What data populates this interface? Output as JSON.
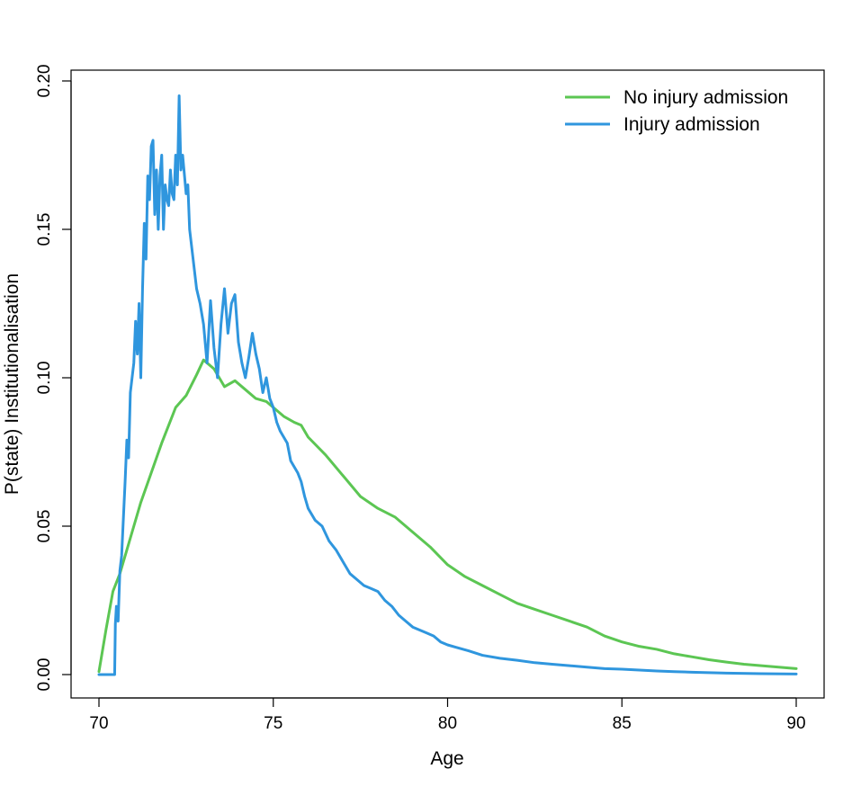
{
  "chart_data": {
    "type": "line",
    "title": "",
    "xlabel": "Age",
    "ylabel": "P(state) Institutionalisation",
    "xlim": [
      70,
      90
    ],
    "ylim": [
      0,
      0.2
    ],
    "xticks": [
      70,
      75,
      80,
      85,
      90
    ],
    "xtick_labels": [
      "70",
      "75",
      "80",
      "85",
      "90"
    ],
    "yticks": [
      0,
      0.05,
      0.1,
      0.15,
      0.2
    ],
    "ytick_labels": [
      "0.00",
      "0.05",
      "0.10",
      "0.15",
      "0.20"
    ],
    "grid": false,
    "legend": {
      "position": "top-right",
      "frame": false
    },
    "series": [
      {
        "name": "No injury admission",
        "color": "#5CC653",
        "x": [
          70.0,
          70.2,
          70.4,
          70.6,
          70.8,
          71.0,
          71.2,
          71.5,
          71.8,
          72.0,
          72.2,
          72.5,
          72.8,
          73.0,
          73.3,
          73.6,
          73.9,
          74.2,
          74.5,
          74.8,
          75.0,
          75.3,
          75.6,
          75.8,
          76.0,
          76.5,
          77.0,
          77.5,
          78.0,
          78.5,
          79.0,
          79.5,
          80.0,
          80.5,
          81.0,
          81.5,
          82.0,
          82.5,
          83.0,
          83.5,
          84.0,
          84.5,
          85.0,
          85.5,
          86.0,
          86.5,
          87.0,
          87.5,
          88.0,
          88.5,
          89.0,
          89.5,
          90.0
        ],
        "values": [
          0.001,
          0.015,
          0.028,
          0.034,
          0.042,
          0.05,
          0.058,
          0.068,
          0.078,
          0.084,
          0.09,
          0.094,
          0.101,
          0.106,
          0.103,
          0.097,
          0.099,
          0.096,
          0.093,
          0.092,
          0.09,
          0.087,
          0.085,
          0.084,
          0.08,
          0.074,
          0.067,
          0.06,
          0.056,
          0.053,
          0.048,
          0.043,
          0.037,
          0.033,
          0.03,
          0.027,
          0.024,
          0.022,
          0.02,
          0.018,
          0.016,
          0.013,
          0.011,
          0.0095,
          0.0085,
          0.007,
          0.006,
          0.005,
          0.0042,
          0.0035,
          0.003,
          0.0025,
          0.002
        ]
      },
      {
        "name": "Injury admission",
        "color": "#2F96DE",
        "x": [
          70.0,
          70.45,
          70.47,
          70.5,
          70.55,
          70.6,
          70.65,
          70.75,
          70.8,
          70.85,
          70.9,
          71.0,
          71.05,
          71.1,
          71.15,
          71.2,
          71.25,
          71.3,
          71.35,
          71.4,
          71.45,
          71.5,
          71.55,
          71.6,
          71.65,
          71.7,
          71.75,
          71.8,
          71.85,
          71.9,
          71.95,
          72.0,
          72.05,
          72.1,
          72.15,
          72.2,
          72.25,
          72.3,
          72.35,
          72.4,
          72.5,
          72.55,
          72.6,
          72.7,
          72.8,
          72.9,
          73.0,
          73.1,
          73.2,
          73.3,
          73.4,
          73.5,
          73.6,
          73.7,
          73.8,
          73.9,
          74.0,
          74.1,
          74.2,
          74.3,
          74.4,
          74.5,
          74.6,
          74.7,
          74.8,
          74.9,
          75.0,
          75.1,
          75.2,
          75.3,
          75.4,
          75.5,
          75.6,
          75.7,
          75.8,
          75.9,
          76.0,
          76.2,
          76.4,
          76.6,
          76.8,
          77.0,
          77.2,
          77.4,
          77.6,
          77.8,
          78.0,
          78.2,
          78.4,
          78.6,
          78.8,
          79.0,
          79.2,
          79.4,
          79.6,
          79.8,
          80.0,
          80.3,
          80.6,
          81.0,
          81.5,
          82.0,
          82.5,
          83.0,
          83.5,
          84.0,
          84.5,
          85.0,
          85.5,
          86.0,
          86.5,
          87.0,
          88.0,
          89.0,
          90.0
        ],
        "values": [
          0.0,
          0.0,
          0.017,
          0.023,
          0.018,
          0.035,
          0.04,
          0.065,
          0.079,
          0.073,
          0.095,
          0.105,
          0.119,
          0.108,
          0.125,
          0.1,
          0.13,
          0.152,
          0.14,
          0.168,
          0.16,
          0.178,
          0.18,
          0.155,
          0.17,
          0.15,
          0.168,
          0.175,
          0.15,
          0.165,
          0.16,
          0.158,
          0.17,
          0.162,
          0.16,
          0.175,
          0.165,
          0.195,
          0.17,
          0.175,
          0.162,
          0.165,
          0.15,
          0.14,
          0.13,
          0.125,
          0.118,
          0.105,
          0.126,
          0.11,
          0.1,
          0.118,
          0.13,
          0.115,
          0.125,
          0.128,
          0.112,
          0.105,
          0.1,
          0.107,
          0.115,
          0.108,
          0.103,
          0.095,
          0.1,
          0.093,
          0.09,
          0.085,
          0.082,
          0.08,
          0.078,
          0.072,
          0.07,
          0.068,
          0.065,
          0.06,
          0.056,
          0.052,
          0.05,
          0.045,
          0.042,
          0.038,
          0.034,
          0.032,
          0.03,
          0.029,
          0.028,
          0.025,
          0.023,
          0.02,
          0.018,
          0.016,
          0.015,
          0.014,
          0.013,
          0.011,
          0.01,
          0.009,
          0.008,
          0.0065,
          0.0055,
          0.0048,
          0.004,
          0.0035,
          0.003,
          0.0025,
          0.002,
          0.0018,
          0.0015,
          0.0012,
          0.001,
          0.0008,
          0.0005,
          0.0003,
          0.0002
        ]
      }
    ]
  }
}
